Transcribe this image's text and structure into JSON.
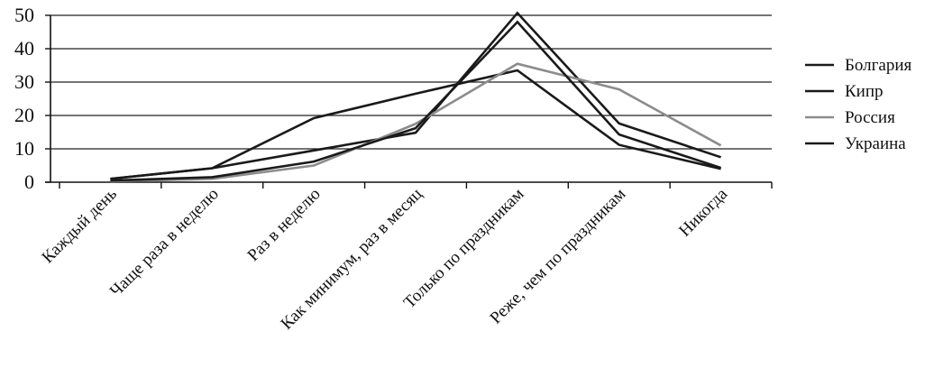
{
  "chart_data": {
    "type": "line",
    "categories": [
      "Каждый день",
      "Чаще раза в неделю",
      "Раз в неделю",
      "Как минимум, раз в месяц",
      "Только по праздникам",
      "Реже, чем по праздникам",
      "Никогда"
    ],
    "ylim": [
      0,
      50
    ],
    "yticks": [
      0,
      10,
      20,
      30,
      40,
      50
    ],
    "grid": true,
    "legend_position": "right",
    "series": [
      {
        "name": "Болгария",
        "color": "#1a1a1a",
        "values": [
          1,
          4.2,
          19.2,
          26.5,
          33.5,
          11.2,
          4
        ]
      },
      {
        "name": "Кипр",
        "color": "#1a1a1a",
        "values": [
          1,
          4.2,
          9.5,
          14.8,
          50.7,
          17.6,
          7.5
        ]
      },
      {
        "name": "Россия",
        "color": "#8c8c8c",
        "values": [
          0.3,
          1,
          5,
          17.5,
          35.5,
          27.8,
          11
        ]
      },
      {
        "name": "Украина",
        "color": "#1a1a1a",
        "values": [
          0.5,
          1.5,
          6.2,
          16.2,
          48,
          14.3,
          4.3
        ]
      }
    ]
  }
}
